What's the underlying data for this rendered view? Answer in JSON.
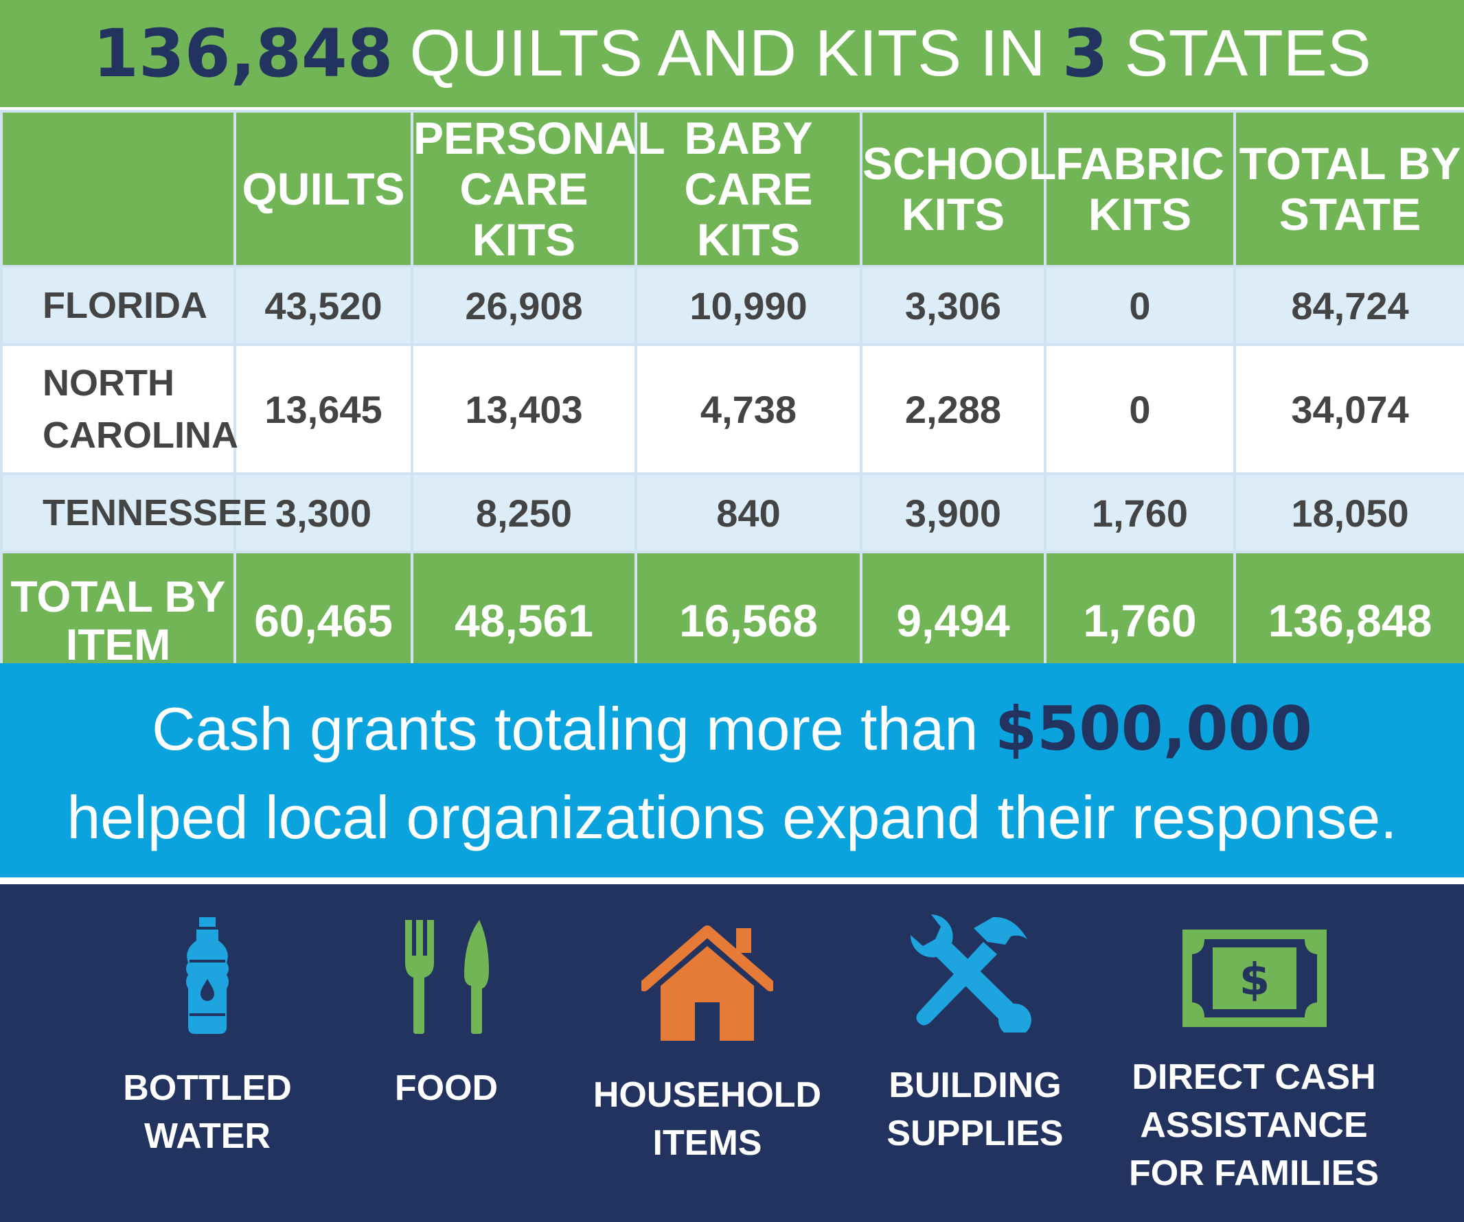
{
  "header": {
    "total_count": "136,848",
    "text_middle": "QUILTS AND KITS IN",
    "state_count": "3",
    "text_end": "STATES"
  },
  "table": {
    "columns": [
      "",
      "QUILTS",
      "PERSONAL CARE KITS",
      "BABY CARE KITS",
      "SCHOOL KITS",
      "FABRIC KITS",
      "TOTAL BY STATE"
    ],
    "rows": [
      {
        "state": "FLORIDA",
        "values": [
          "43,520",
          "26,908",
          "10,990",
          "3,306",
          "0",
          "84,724"
        ]
      },
      {
        "state": "NORTH CAROLINA",
        "values": [
          "13,645",
          "13,403",
          "4,738",
          "2,288",
          "0",
          "34,074"
        ]
      },
      {
        "state": "TENNESSEE",
        "values": [
          "3,300",
          "8,250",
          "840",
          "3,900",
          "1,760",
          "18,050"
        ]
      }
    ],
    "total": {
      "label": "TOTAL BY ITEM",
      "values": [
        "60,465",
        "48,561",
        "16,568",
        "9,494",
        "1,760",
        "136,848"
      ]
    }
  },
  "cash": {
    "line1_prefix": "Cash grants totaling more than",
    "amount": "$500,000",
    "line2": "helped local organizations expand their response."
  },
  "needs": [
    {
      "label": "BOTTLED WATER",
      "icon": "water-bottle-icon"
    },
    {
      "label": "FOOD",
      "icon": "fork-knife-icon"
    },
    {
      "label": "HOUSEHOLD ITEMS",
      "icon": "house-icon"
    },
    {
      "label": "BUILDING SUPPLIES",
      "icon": "wrench-hammer-icon"
    },
    {
      "label": "DIRECT CASH ASSISTANCE FOR FAMILIES",
      "icon": "cash-icon"
    }
  ],
  "colors": {
    "green": "#72b557",
    "navy": "#22335f",
    "blue": "#0aa3dd",
    "light_blue_row": "#dcedf8",
    "orange": "#e57b37",
    "icon_blue": "#1ea5e0",
    "icon_green": "#72b557"
  }
}
